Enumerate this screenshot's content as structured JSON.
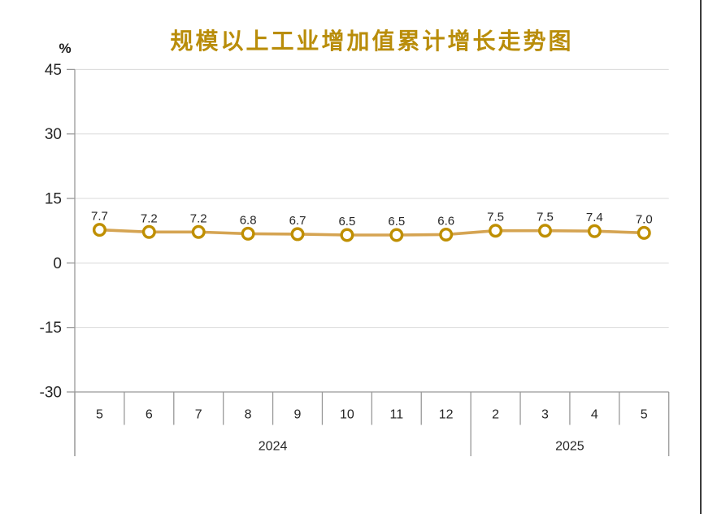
{
  "chart_data": {
    "type": "line",
    "title": "规模以上工业增加值累计增长走势图",
    "unit_label": "%",
    "categories": [
      "5",
      "6",
      "7",
      "8",
      "9",
      "10",
      "11",
      "12",
      "2",
      "3",
      "4",
      "5"
    ],
    "year_groups": [
      {
        "label": "2024",
        "start": 0,
        "end": 7
      },
      {
        "label": "2025",
        "start": 8,
        "end": 11
      }
    ],
    "values": [
      7.7,
      7.2,
      7.2,
      6.8,
      6.7,
      6.5,
      6.5,
      6.6,
      7.5,
      7.5,
      7.4,
      7.0
    ],
    "point_labels": [
      "7.7",
      "7.2",
      "7.2",
      "6.8",
      "6.7",
      "6.5",
      "6.5",
      "6.6",
      "7.5",
      "7.5",
      "7.4",
      "7.0"
    ],
    "y_axis": {
      "min": -30,
      "max": 45,
      "step": 15,
      "ticks": [
        45,
        30,
        15,
        0,
        -15,
        -30
      ]
    },
    "grid": true,
    "legend": "none",
    "colors": {
      "title": "#B98D0A",
      "line": "#D5A452",
      "marker_stroke": "#BF8F00",
      "marker_fill": "#FFFFFF",
      "grid": "#D9D9D9",
      "axis": "#999999",
      "text": "#262626"
    }
  }
}
